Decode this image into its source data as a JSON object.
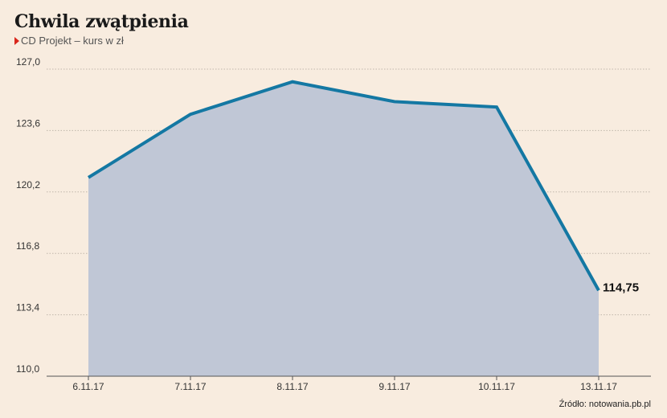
{
  "header": {
    "title": "Chwila zwątpienia",
    "subtitle": "CD Projekt – kurs w zł"
  },
  "source": "Źródło: notowania.pb.pl",
  "colors": {
    "background": "#f8ecdf",
    "area_fill": "#c0c7d6",
    "line": "#1478a3",
    "grid": "#bfb6ab",
    "marker": "#d9261c"
  },
  "chart_data": {
    "type": "area",
    "x": [
      "6.11.17",
      "7.11.17",
      "8.11.17",
      "9.11.17",
      "10.11.17",
      "13.11.17"
    ],
    "series": [
      {
        "values": [
          121.0,
          124.5,
          126.3,
          125.2,
          124.9,
          114.75
        ]
      }
    ],
    "ylim": [
      110.0,
      127.0
    ],
    "yticks": [
      "110,0",
      "113,4",
      "116,8",
      "120,2",
      "123,6",
      "127,0"
    ],
    "last_value_label": "114,75",
    "grid": true
  }
}
